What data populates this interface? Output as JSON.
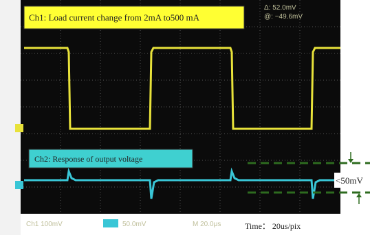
{
  "annotations": {
    "ch1_label": "Ch1: Load current change from 2mA to500 mA",
    "ch2_label": "Ch2: Response of output voltage",
    "ripple": "<50mV",
    "timebase": "Time： 20us/pix"
  },
  "readouts": {
    "delta": "Δ: 52.0mV",
    "at": "@: −49.6mV",
    "ch1_scale": "Ch1  100mV",
    "ch2_scale": "50.0mV",
    "time_scale": "M 20.0μs"
  }
}
